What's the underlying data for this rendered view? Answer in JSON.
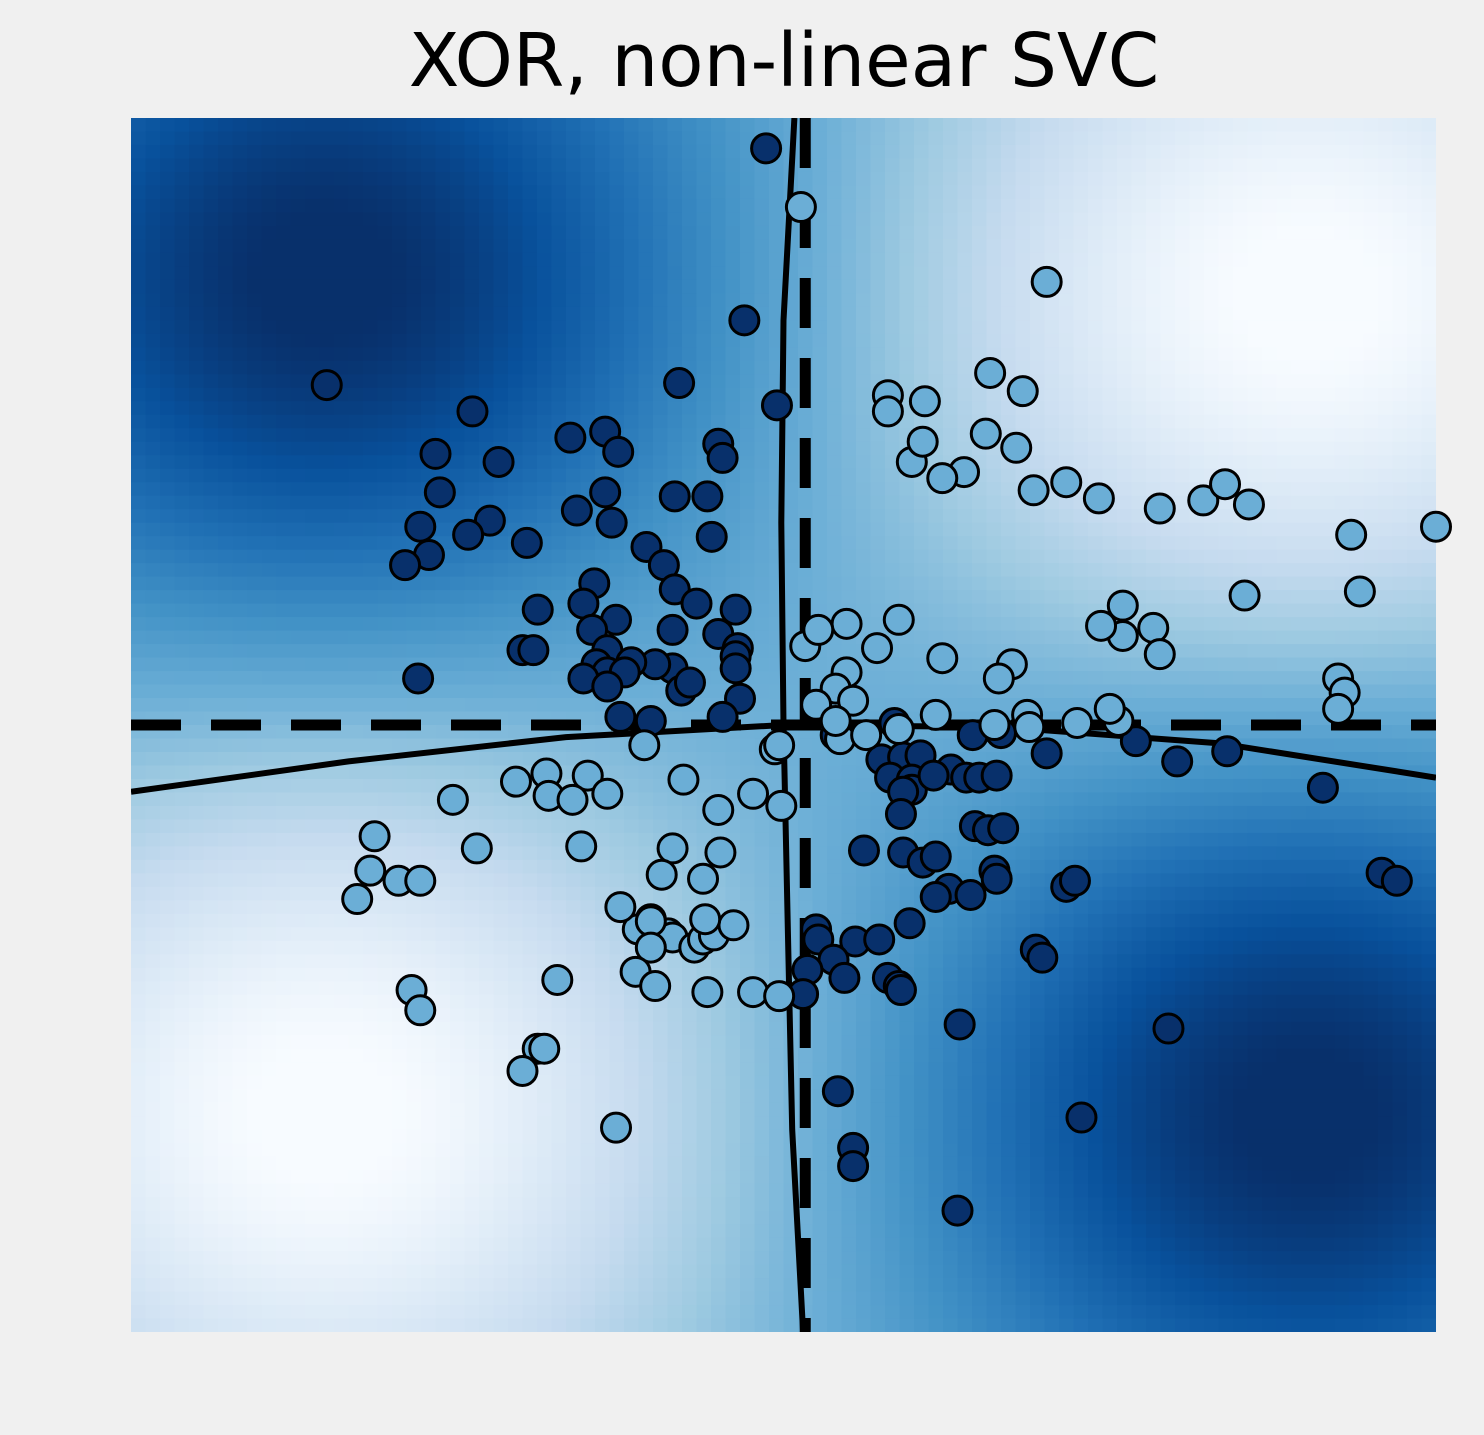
{
  "chart_data": {
    "type": "scatter",
    "title": "XOR, non-linear SVC",
    "xlabel": "",
    "ylabel": "",
    "xlim": [
      -3,
      3
    ],
    "ylim": [
      -3,
      3
    ],
    "grid": false,
    "axes_visible": false,
    "colors": {
      "figure_background": "#f0f0f0",
      "class_true": "#08306b",
      "class_false": "#6baed6",
      "marker_edge": "#000000",
      "colormap": "Blues"
    },
    "background": {
      "type": "decision_function_heatmap",
      "peaks_dark": [
        [
          -2.1,
          2.2
        ],
        [
          2.4,
          -1.9
        ]
      ],
      "peaks_light": [
        [
          -2.1,
          -1.9
        ],
        [
          2.4,
          2.1
        ]
      ]
    },
    "reference_lines": [
      {
        "orientation": "horizontal",
        "y": 0,
        "style": "dashed"
      },
      {
        "orientation": "vertical",
        "x": 0.1,
        "style": "dashed"
      }
    ],
    "decision_boundary": {
      "style": "solid",
      "horizontal_branch": [
        [
          -3,
          -0.33
        ],
        [
          -2,
          -0.18
        ],
        [
          -1,
          -0.06
        ],
        [
          0,
          0
        ],
        [
          1,
          -0.01
        ],
        [
          2,
          -0.09
        ],
        [
          3,
          -0.26
        ]
      ],
      "vertical_branch": [
        [
          0.05,
          3
        ],
        [
          0.0,
          2
        ],
        [
          -0.01,
          1
        ],
        [
          0.0,
          0
        ],
        [
          0.02,
          -1
        ],
        [
          0.04,
          -2
        ],
        [
          0.09,
          -3
        ]
      ]
    },
    "series": [
      {
        "label": "True",
        "points": [
          [
            -0.08,
            2.85
          ],
          [
            -0.18,
            2.0
          ],
          [
            -2.1,
            1.68
          ],
          [
            -1.43,
            1.55
          ],
          [
            -0.48,
            1.69
          ],
          [
            -0.03,
            1.58
          ],
          [
            -1.6,
            1.34
          ],
          [
            -0.82,
            1.45
          ],
          [
            -0.3,
            1.39
          ],
          [
            -0.28,
            1.32
          ],
          [
            -0.76,
            1.35
          ],
          [
            -0.98,
            1.42
          ],
          [
            -1.31,
            1.3
          ],
          [
            -1.58,
            1.15
          ],
          [
            -0.5,
            1.13
          ],
          [
            -0.35,
            1.13
          ],
          [
            -0.82,
            1.15
          ],
          [
            -0.95,
            1.06
          ],
          [
            -0.33,
            0.93
          ],
          [
            -0.63,
            0.88
          ],
          [
            -0.79,
            1.0
          ],
          [
            -1.35,
            1.01
          ],
          [
            -1.67,
            0.98
          ],
          [
            -1.18,
            0.9
          ],
          [
            -1.45,
            0.94
          ],
          [
            -1.63,
            0.84
          ],
          [
            -1.74,
            0.79
          ],
          [
            -0.55,
            0.79
          ],
          [
            -0.5,
            0.67
          ],
          [
            -0.4,
            0.6
          ],
          [
            -0.22,
            0.57
          ],
          [
            -0.87,
            0.7
          ],
          [
            -0.92,
            0.6
          ],
          [
            -1.13,
            0.57
          ],
          [
            -0.77,
            0.52
          ],
          [
            -0.88,
            0.47
          ],
          [
            -0.3,
            0.45
          ],
          [
            -0.21,
            0.38
          ],
          [
            -0.51,
            0.47
          ],
          [
            -0.81,
            0.37
          ],
          [
            -0.51,
            0.28
          ],
          [
            -0.59,
            0.3
          ],
          [
            -1.2,
            0.37
          ],
          [
            -1.15,
            0.37
          ],
          [
            -0.86,
            0.3
          ],
          [
            -0.81,
            0.26
          ],
          [
            -0.22,
            0.34
          ],
          [
            -0.22,
            0.28
          ],
          [
            -0.7,
            0.31
          ],
          [
            -0.73,
            0.26
          ],
          [
            -0.92,
            0.23
          ],
          [
            -0.81,
            0.19
          ],
          [
            -0.47,
            0.17
          ],
          [
            -0.43,
            0.21
          ],
          [
            -0.2,
            0.13
          ],
          [
            -1.68,
            0.23
          ],
          [
            -0.75,
            0.04
          ],
          [
            -0.61,
            0.02
          ],
          [
            -0.28,
            0.04
          ],
          [
            0.24,
            -0.05
          ],
          [
            0.51,
            0.01
          ],
          [
            0.87,
            -0.05
          ],
          [
            1.0,
            -0.04
          ],
          [
            1.62,
            -0.08
          ],
          [
            0.45,
            -0.17
          ],
          [
            0.55,
            -0.16
          ],
          [
            0.63,
            -0.15
          ],
          [
            0.77,
            -0.22
          ],
          [
            1.21,
            -0.14
          ],
          [
            1.81,
            -0.18
          ],
          [
            2.04,
            -0.13
          ],
          [
            2.48,
            -0.31
          ],
          [
            0.49,
            -0.26
          ],
          [
            0.59,
            -0.27
          ],
          [
            0.59,
            -0.32
          ],
          [
            0.69,
            -0.25
          ],
          [
            0.84,
            -0.26
          ],
          [
            0.55,
            -0.33
          ],
          [
            0.9,
            -0.26
          ],
          [
            0.98,
            -0.25
          ],
          [
            0.54,
            -0.44
          ],
          [
            0.37,
            -0.62
          ],
          [
            0.55,
            -0.63
          ],
          [
            0.64,
            -0.68
          ],
          [
            0.7,
            -0.65
          ],
          [
            0.88,
            -0.5
          ],
          [
            0.94,
            -0.52
          ],
          [
            1.01,
            -0.51
          ],
          [
            0.97,
            -0.72
          ],
          [
            0.76,
            -0.81
          ],
          [
            0.98,
            -0.76
          ],
          [
            0.7,
            -0.85
          ],
          [
            0.86,
            -0.84
          ],
          [
            1.3,
            -0.8
          ],
          [
            1.34,
            -0.77
          ],
          [
            2.75,
            -0.73
          ],
          [
            2.82,
            -0.77
          ],
          [
            0.15,
            -1.01
          ],
          [
            0.16,
            -1.06
          ],
          [
            0.58,
            -0.98
          ],
          [
            0.33,
            -1.07
          ],
          [
            0.44,
            -1.06
          ],
          [
            0.23,
            -1.16
          ],
          [
            0.11,
            -1.21
          ],
          [
            0.28,
            -1.25
          ],
          [
            0.48,
            -1.25
          ],
          [
            0.53,
            -1.29
          ],
          [
            0.54,
            -1.31
          ],
          [
            1.16,
            -1.11
          ],
          [
            1.19,
            -1.15
          ],
          [
            0.81,
            -1.48
          ],
          [
            1.77,
            -1.5
          ],
          [
            0.25,
            -1.81
          ],
          [
            1.37,
            -1.94
          ],
          [
            0.32,
            -2.09
          ],
          [
            0.32,
            -2.18
          ],
          [
            0.8,
            -2.4
          ],
          [
            0.09,
            -1.33
          ]
        ]
      },
      {
        "label": "False",
        "points": [
          [
            0.08,
            2.56
          ],
          [
            1.21,
            2.19
          ],
          [
            0.95,
            1.74
          ],
          [
            0.65,
            1.6
          ],
          [
            0.93,
            1.44
          ],
          [
            0.48,
            1.63
          ],
          [
            0.59,
            1.3
          ],
          [
            0.64,
            1.4
          ],
          [
            1.1,
            1.65
          ],
          [
            1.15,
            1.16
          ],
          [
            0.48,
            1.55
          ],
          [
            1.07,
            1.37
          ],
          [
            0.83,
            1.25
          ],
          [
            0.73,
            1.22
          ],
          [
            1.93,
            1.11
          ],
          [
            1.73,
            1.07
          ],
          [
            1.3,
            1.2
          ],
          [
            1.45,
            1.12
          ],
          [
            2.03,
            1.19
          ],
          [
            2.14,
            1.09
          ],
          [
            2.61,
            0.94
          ],
          [
            2.65,
            0.66
          ],
          [
            3.0,
            0.98
          ],
          [
            1.56,
            0.59
          ],
          [
            1.56,
            0.44
          ],
          [
            1.46,
            0.49
          ],
          [
            1.7,
            0.48
          ],
          [
            1.73,
            0.35
          ],
          [
            2.12,
            0.64
          ],
          [
            0.53,
            0.52
          ],
          [
            0.29,
            0.5
          ],
          [
            0.43,
            0.38
          ],
          [
            0.1,
            0.39
          ],
          [
            0.16,
            0.47
          ],
          [
            0.29,
            0.26
          ],
          [
            0.24,
            0.18
          ],
          [
            0.32,
            0.12
          ],
          [
            0.73,
            0.33
          ],
          [
            1.05,
            0.3
          ],
          [
            0.99,
            0.23
          ],
          [
            0.15,
            0.1
          ],
          [
            0.26,
            -0.07
          ],
          [
            0.38,
            -0.05
          ],
          [
            0.53,
            -0.02
          ],
          [
            1.12,
            0.05
          ],
          [
            1.54,
            0.02
          ],
          [
            2.55,
            0.23
          ],
          [
            2.58,
            0.16
          ],
          [
            2.55,
            0.08
          ],
          [
            1.35,
            0.01
          ],
          [
            1.5,
            0.08
          ],
          [
            0.97,
            0.0
          ],
          [
            1.13,
            -0.01
          ],
          [
            0.7,
            0.05
          ],
          [
            0.24,
            0.02
          ],
          [
            -0.04,
            -0.12
          ],
          [
            -0.02,
            -0.1
          ],
          [
            -0.64,
            -0.1
          ],
          [
            -1.09,
            -0.24
          ],
          [
            -1.23,
            -0.28
          ],
          [
            -1.08,
            -0.35
          ],
          [
            -0.9,
            -0.25
          ],
          [
            -0.97,
            -0.37
          ],
          [
            -0.81,
            -0.34
          ],
          [
            -0.46,
            -0.27
          ],
          [
            -0.3,
            -0.42
          ],
          [
            -0.14,
            -0.34
          ],
          [
            -0.01,
            -0.4
          ],
          [
            -1.52,
            -0.37
          ],
          [
            -1.88,
            -0.55
          ],
          [
            -1.41,
            -0.61
          ],
          [
            -0.93,
            -0.6
          ],
          [
            -0.51,
            -0.61
          ],
          [
            -0.29,
            -0.63
          ],
          [
            -1.9,
            -0.72
          ],
          [
            -1.77,
            -0.77
          ],
          [
            -1.67,
            -0.77
          ],
          [
            -1.96,
            -0.86
          ],
          [
            -0.56,
            -0.74
          ],
          [
            -0.37,
            -0.76
          ],
          [
            -0.61,
            -0.96
          ],
          [
            -0.53,
            -1.03
          ],
          [
            -0.51,
            -1.05
          ],
          [
            -0.67,
            -1.01
          ],
          [
            -0.41,
            -1.1
          ],
          [
            -0.37,
            -1.06
          ],
          [
            -0.32,
            -1.04
          ],
          [
            -0.23,
            -0.99
          ],
          [
            -0.36,
            -0.96
          ],
          [
            -0.75,
            -0.9
          ],
          [
            -0.61,
            -0.97
          ],
          [
            -0.61,
            -1.1
          ],
          [
            -0.68,
            -1.22
          ],
          [
            -1.04,
            -1.26
          ],
          [
            -0.59,
            -1.29
          ],
          [
            -0.35,
            -1.32
          ],
          [
            -1.71,
            -1.31
          ],
          [
            -1.67,
            -1.41
          ],
          [
            -1.13,
            -1.6
          ],
          [
            -1.1,
            -1.6
          ],
          [
            -0.77,
            -1.99
          ],
          [
            -1.2,
            -1.71
          ],
          [
            -0.14,
            -1.32
          ],
          [
            -0.02,
            -1.34
          ]
        ]
      }
    ]
  }
}
